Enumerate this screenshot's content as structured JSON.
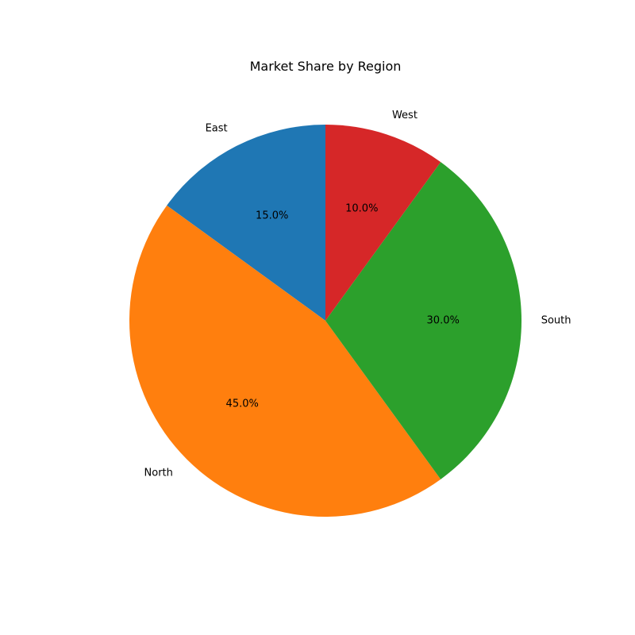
{
  "chart_data": {
    "type": "pie",
    "title": "Market Share by Region",
    "categories": [
      "East",
      "North",
      "South",
      "West"
    ],
    "values": [
      15.0,
      45.0,
      30.0,
      10.0
    ],
    "percent_labels": [
      "15.0%",
      "45.0%",
      "30.0%",
      "10.0%"
    ],
    "colors": [
      "#1f77b4",
      "#ff7f0e",
      "#2ca02c",
      "#d62728"
    ],
    "start_angle_deg": 90,
    "direction": "counterclockwise",
    "legend": "none"
  }
}
